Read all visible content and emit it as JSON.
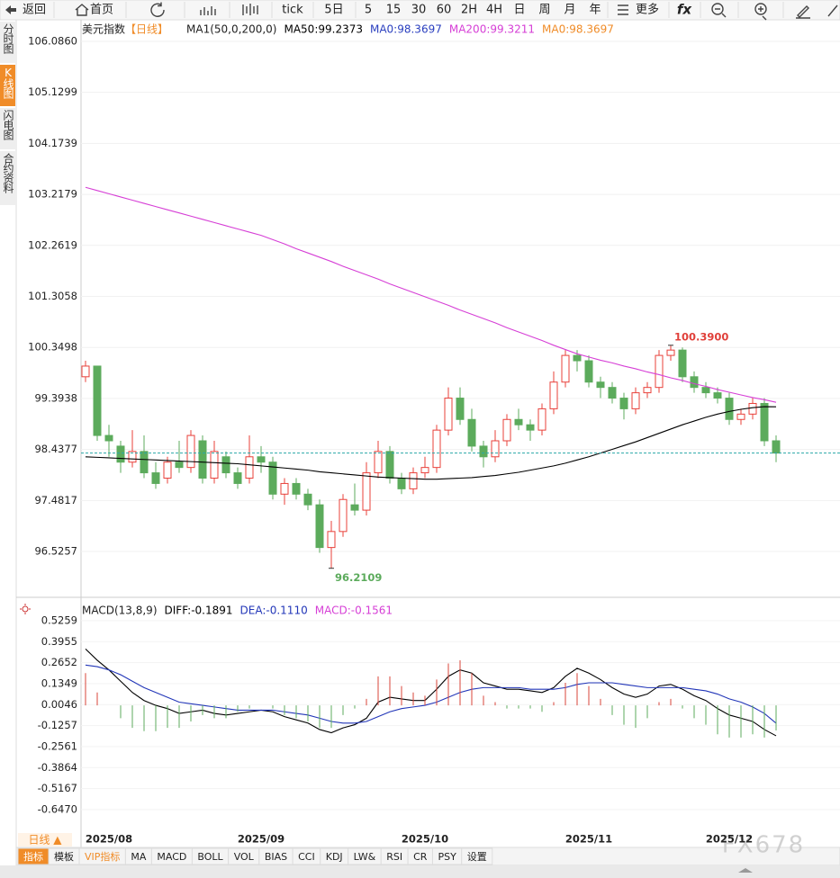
{
  "toolbar": [
    "返回",
    "首页",
    "tick",
    "5日",
    "5",
    "15",
    "30",
    "60",
    "2H",
    "4H",
    "日",
    "周",
    "月",
    "年",
    "更多",
    "fx"
  ],
  "sidebar": {
    "items": [
      "分时图",
      "K线图",
      "闪电图",
      "合约资料"
    ],
    "active": 1
  },
  "period": "日线 ▲",
  "bottom_tabs": {
    "items": [
      "指标",
      "模板",
      "VIP指标",
      "MA",
      "MACD",
      "BOLL",
      "VOL",
      "BIAS",
      "CCI",
      "KDJ",
      "LW&",
      "RSI",
      "CR",
      "PSY",
      "设置"
    ],
    "active": 0,
    "highlight": 2
  },
  "watermark": "FX678",
  "chart_data": [
    {
      "type": "candlestick",
      "title": "美元指数",
      "period_tag": "【日线】",
      "indicator": "MA1(50,0,200,0)",
      "open": [
        99.8,
        100.0,
        98.7,
        98.5,
        98.2,
        98.4,
        98.0,
        97.9,
        98.2,
        98.1,
        98.6,
        97.9,
        98.3,
        98.0,
        97.9,
        98.3,
        98.2,
        97.6,
        97.8,
        97.6,
        97.4,
        96.6,
        96.9,
        97.4,
        97.3,
        98.0,
        98.4,
        97.9,
        97.7,
        98.0,
        98.1,
        98.8,
        99.4,
        99.0,
        98.5,
        98.3,
        98.6,
        99.0,
        98.9,
        98.8,
        99.2,
        99.7,
        100.2,
        100.1,
        99.7,
        99.6,
        99.4,
        99.2,
        99.5,
        99.6,
        100.2,
        100.3,
        99.8,
        99.6,
        99.5,
        99.4,
        99.0,
        99.1,
        99.3,
        98.6
      ],
      "high": [
        100.1,
        100.0,
        98.9,
        98.6,
        98.8,
        98.7,
        98.2,
        98.3,
        98.6,
        98.8,
        98.7,
        98.6,
        98.4,
        98.1,
        98.7,
        98.5,
        98.3,
        97.9,
        97.9,
        97.7,
        97.5,
        97.1,
        97.6,
        97.8,
        98.2,
        98.6,
        98.5,
        98.0,
        98.1,
        98.3,
        98.9,
        99.6,
        99.6,
        99.2,
        98.6,
        98.8,
        99.1,
        99.2,
        99.0,
        99.3,
        99.9,
        100.3,
        100.3,
        100.2,
        99.8,
        99.7,
        99.5,
        99.6,
        99.7,
        100.3,
        100.39,
        100.35,
        99.9,
        99.7,
        99.6,
        99.5,
        99.2,
        99.4,
        99.4,
        98.7
      ],
      "low": [
        99.7,
        98.6,
        98.3,
        98.0,
        98.1,
        97.9,
        97.7,
        97.8,
        98.0,
        98.0,
        97.8,
        97.8,
        97.9,
        97.7,
        97.8,
        98.0,
        97.5,
        97.4,
        97.5,
        97.3,
        96.5,
        96.2109,
        96.8,
        97.2,
        97.2,
        97.9,
        97.8,
        97.6,
        97.6,
        97.9,
        98.0,
        98.7,
        98.9,
        98.4,
        98.1,
        98.2,
        98.5,
        98.8,
        98.6,
        98.7,
        99.1,
        99.6,
        99.9,
        99.6,
        99.4,
        99.3,
        99.0,
        99.1,
        99.4,
        99.5,
        100.1,
        99.7,
        99.5,
        99.4,
        99.3,
        98.9,
        98.9,
        99.0,
        98.5,
        98.2
      ],
      "close": [
        100.0,
        98.7,
        98.6,
        98.2,
        98.4,
        98.0,
        97.8,
        98.2,
        98.1,
        98.7,
        97.9,
        98.4,
        98.0,
        97.8,
        98.3,
        98.2,
        97.6,
        97.8,
        97.6,
        97.4,
        96.6,
        96.9,
        97.5,
        97.3,
        98.0,
        98.4,
        97.9,
        97.7,
        98.0,
        98.1,
        98.8,
        99.4,
        99.0,
        98.5,
        98.3,
        98.6,
        99.0,
        98.9,
        98.8,
        99.2,
        99.7,
        100.2,
        100.1,
        99.7,
        99.6,
        99.4,
        99.2,
        99.5,
        99.6,
        100.2,
        100.3,
        99.8,
        99.6,
        99.5,
        99.4,
        99.0,
        99.1,
        99.3,
        98.6,
        98.3697
      ],
      "up_color": "#e8403a",
      "down_color": "#5cab5c",
      "series": [
        {
          "name": "MA50:99.2373",
          "color": "#000000",
          "values": [
            98.3,
            98.29,
            98.28,
            98.27,
            98.26,
            98.25,
            98.24,
            98.23,
            98.22,
            98.21,
            98.2,
            98.19,
            98.18,
            98.17,
            98.15,
            98.13,
            98.11,
            98.09,
            98.07,
            98.05,
            98.02,
            98.0,
            97.98,
            97.96,
            97.94,
            97.92,
            97.91,
            97.9,
            97.89,
            97.88,
            97.88,
            97.89,
            97.9,
            97.91,
            97.93,
            97.95,
            97.98,
            98.01,
            98.05,
            98.09,
            98.13,
            98.18,
            98.24,
            98.3,
            98.37,
            98.44,
            98.51,
            98.58,
            98.66,
            98.74,
            98.82,
            98.9,
            98.97,
            99.04,
            99.1,
            99.15,
            99.19,
            99.22,
            99.24,
            99.2373
          ]
        },
        {
          "name": "MA200:99.3211",
          "color": "#d63fd6",
          "values": [
            103.35,
            103.29,
            103.23,
            103.17,
            103.11,
            103.05,
            102.99,
            102.93,
            102.87,
            102.81,
            102.75,
            102.69,
            102.63,
            102.57,
            102.51,
            102.45,
            102.37,
            102.29,
            102.2,
            102.12,
            102.04,
            101.96,
            101.87,
            101.79,
            101.71,
            101.63,
            101.54,
            101.46,
            101.38,
            101.3,
            101.22,
            101.14,
            101.05,
            100.97,
            100.89,
            100.81,
            100.72,
            100.64,
            100.56,
            100.48,
            100.39,
            100.31,
            100.23,
            100.17,
            100.11,
            100.06,
            100.0,
            99.95,
            99.89,
            99.84,
            99.78,
            99.73,
            99.67,
            99.62,
            99.56,
            99.51,
            99.46,
            99.41,
            99.37,
            99.3211
          ]
        }
      ],
      "legend_extra": [
        {
          "name": "MA0:98.3697",
          "color": "#2a3fbf"
        },
        {
          "name": "MA0:98.3697",
          "color": "#f08c28"
        }
      ],
      "annotations": [
        {
          "value": 100.39,
          "label": "100.3900",
          "color": "#e0403a"
        },
        {
          "value": 96.2109,
          "label": "96.2109",
          "color": "#5cab5c"
        }
      ],
      "ylim": [
        95.7,
        106.49
      ],
      "yticks": [
        {
          "value": 106.086,
          "label": "106.0860"
        },
        105.1299,
        104.1739,
        103.2179,
        102.2619,
        101.3058,
        100.3498,
        99.3938,
        98.4377,
        97.4817,
        96.5257
      ],
      "grid": true,
      "last_price_line": true
    },
    {
      "type": "macd",
      "indicator": "MACD(13,8,9)",
      "categories": [
        null,
        null,
        "2025/08",
        null,
        null,
        null,
        null,
        null,
        null,
        null,
        null,
        null,
        null,
        null,
        null,
        "2025/09",
        null,
        null,
        null,
        null,
        null,
        null,
        null,
        null,
        null,
        null,
        null,
        null,
        null,
        "2025/10",
        null,
        null,
        null,
        null,
        null,
        null,
        null,
        null,
        null,
        null,
        null,
        null,
        null,
        "2025/11",
        null,
        null,
        null,
        null,
        null,
        null,
        null,
        null,
        null,
        null,
        null,
        "2025/12",
        null,
        null,
        null,
        null
      ],
      "series": [
        {
          "name": "DIFF:-0.1891",
          "color": "#000000",
          "legend_color": "#000000",
          "values": [
            0.35,
            0.28,
            0.22,
            0.15,
            0.08,
            0.03,
            0.0,
            -0.02,
            -0.05,
            -0.04,
            -0.03,
            -0.05,
            -0.06,
            -0.05,
            -0.04,
            -0.03,
            -0.04,
            -0.07,
            -0.09,
            -0.11,
            -0.15,
            -0.17,
            -0.14,
            -0.12,
            -0.08,
            0.02,
            0.05,
            0.04,
            0.03,
            0.03,
            0.1,
            0.18,
            0.22,
            0.2,
            0.14,
            0.12,
            0.1,
            0.1,
            0.09,
            0.08,
            0.11,
            0.18,
            0.23,
            0.2,
            0.16,
            0.11,
            0.07,
            0.05,
            0.07,
            0.12,
            0.13,
            0.1,
            0.06,
            0.03,
            -0.02,
            -0.06,
            -0.08,
            -0.1,
            -0.15,
            -0.1891
          ]
        },
        {
          "name": "DEA:-0.1110",
          "color": "#2236b8",
          "legend_color": "#2236b8",
          "values": [
            0.25,
            0.24,
            0.22,
            0.19,
            0.15,
            0.11,
            0.08,
            0.05,
            0.02,
            0.01,
            0.0,
            -0.01,
            -0.02,
            -0.03,
            -0.03,
            -0.03,
            -0.03,
            -0.04,
            -0.05,
            -0.06,
            -0.08,
            -0.1,
            -0.11,
            -0.11,
            -0.1,
            -0.07,
            -0.04,
            -0.02,
            -0.01,
            0.0,
            0.02,
            0.05,
            0.08,
            0.1,
            0.11,
            0.11,
            0.11,
            0.11,
            0.1,
            0.1,
            0.1,
            0.11,
            0.13,
            0.14,
            0.14,
            0.14,
            0.13,
            0.12,
            0.11,
            0.11,
            0.11,
            0.11,
            0.1,
            0.09,
            0.07,
            0.04,
            0.02,
            -0.01,
            -0.05,
            -0.111
          ]
        },
        {
          "name": "MACD:-0.1561",
          "type": "bar",
          "legend_color": "#d63fd6",
          "up_color": "#d9443a",
          "down_color": "#5cab5c",
          "values": [
            0.2,
            0.08,
            0,
            -0.08,
            -0.14,
            -0.16,
            -0.16,
            -0.14,
            -0.14,
            -0.1,
            -0.06,
            -0.08,
            -0.08,
            -0.04,
            -0.02,
            0,
            -0.02,
            -0.06,
            -0.08,
            -0.1,
            -0.14,
            -0.14,
            -0.06,
            -0.02,
            0.04,
            0.18,
            0.18,
            0.12,
            0.08,
            0.06,
            0.16,
            0.26,
            0.28,
            0.2,
            0.06,
            0.02,
            -0.02,
            -0.02,
            -0.02,
            -0.04,
            0.02,
            0.14,
            0.2,
            0.12,
            0.04,
            -0.06,
            -0.12,
            -0.14,
            -0.08,
            0.02,
            0.04,
            -0.02,
            -0.08,
            -0.12,
            -0.18,
            -0.2,
            -0.2,
            -0.18,
            -0.2,
            -0.1561
          ]
        }
      ],
      "ylim": [
        -0.787,
        0.665
      ],
      "yticks": [
        0.5259,
        0.3955,
        0.2652,
        0.1349,
        0.0046,
        -0.1257,
        -0.2561,
        -0.3864,
        -0.5167,
        {
          "value": -0.647,
          "label": "-0.6470"
        }
      ],
      "grid": true
    }
  ]
}
